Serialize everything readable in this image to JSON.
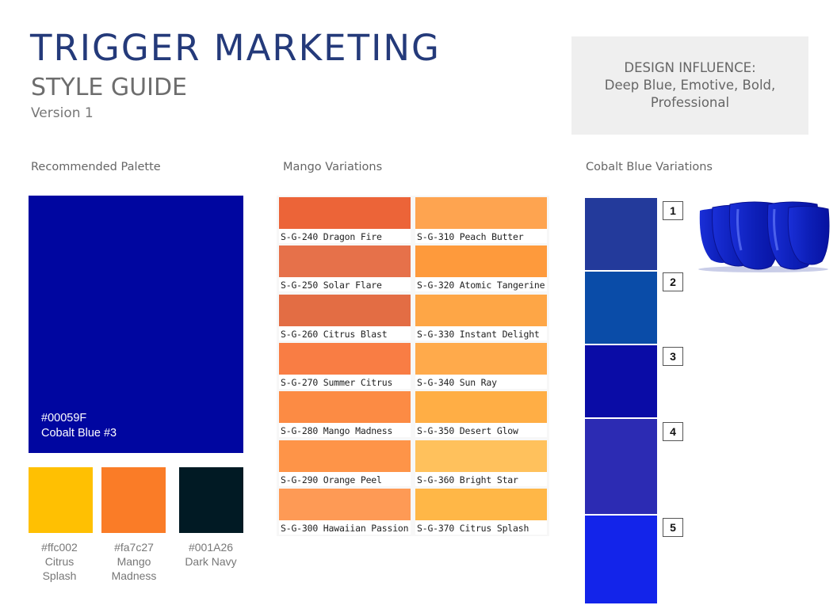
{
  "header": {
    "title": "TRIGGER MARKETING",
    "subtitle": "STYLE GUIDE",
    "version": "Version 1"
  },
  "influence": {
    "line1": "DESIGN INFLUENCE:",
    "line2": "Deep Blue, Emotive, Bold,",
    "line3": "Professional"
  },
  "sections": {
    "palette": "Recommended Palette",
    "mango": "Mango Variations",
    "cobalt": "Cobalt Blue Variations"
  },
  "main_swatch": {
    "hex": "#00059F",
    "name": "Cobalt Blue #3",
    "color": "#0006a0"
  },
  "mini_swatches": [
    {
      "hex": "#ffc002",
      "line1": "Citrus",
      "line2": "Splash",
      "color": "#ffc002"
    },
    {
      "hex": "#fa7c27",
      "line1": "Mango",
      "line2": "Madness",
      "color": "#fa7c27"
    },
    {
      "hex": "#001A26",
      "line1": "Dark Navy",
      "line2": "",
      "color": "#011a24"
    }
  ],
  "mango": [
    {
      "name": "S-G-240 Dragon Fire",
      "color": "#ec6438"
    },
    {
      "name": "S-G-310 Peach Butter",
      "color": "#fea450"
    },
    {
      "name": "S-G-250 Solar Flare",
      "color": "#e6714a"
    },
    {
      "name": "S-G-320 Atomic Tangerine",
      "color": "#fe9a3c"
    },
    {
      "name": "S-G-260 Citrus Blast",
      "color": "#e36d44"
    },
    {
      "name": "S-G-330 Instant Delight",
      "color": "#fea646"
    },
    {
      "name": "S-G-270 Summer Citrus",
      "color": "#f97d44"
    },
    {
      "name": "S-G-340 Sun Ray",
      "color": "#ffaa4b"
    },
    {
      "name": "S-G-280 Mango Madness",
      "color": "#fc8b44"
    },
    {
      "name": "S-G-350 Desert Glow",
      "color": "#ffae45"
    },
    {
      "name": "S-G-290 Orange Peel",
      "color": "#fe9448"
    },
    {
      "name": "S-G-360 Bright Star",
      "color": "#ffc15c"
    },
    {
      "name": "S-G-300 Hawaiian Passion",
      "color": "#fe9a55"
    },
    {
      "name": "S-G-370 Citrus Splash",
      "color": "#ffb747"
    }
  ],
  "cobalt": [
    {
      "label": "1",
      "color": "#233a9b"
    },
    {
      "label": "2",
      "color": "#0a4ca8"
    },
    {
      "label": "3",
      "color": "#0a0ca6"
    },
    {
      "label": "4",
      "color": "#2c2bb3"
    },
    {
      "label": "5",
      "color": "#1324ea"
    }
  ]
}
